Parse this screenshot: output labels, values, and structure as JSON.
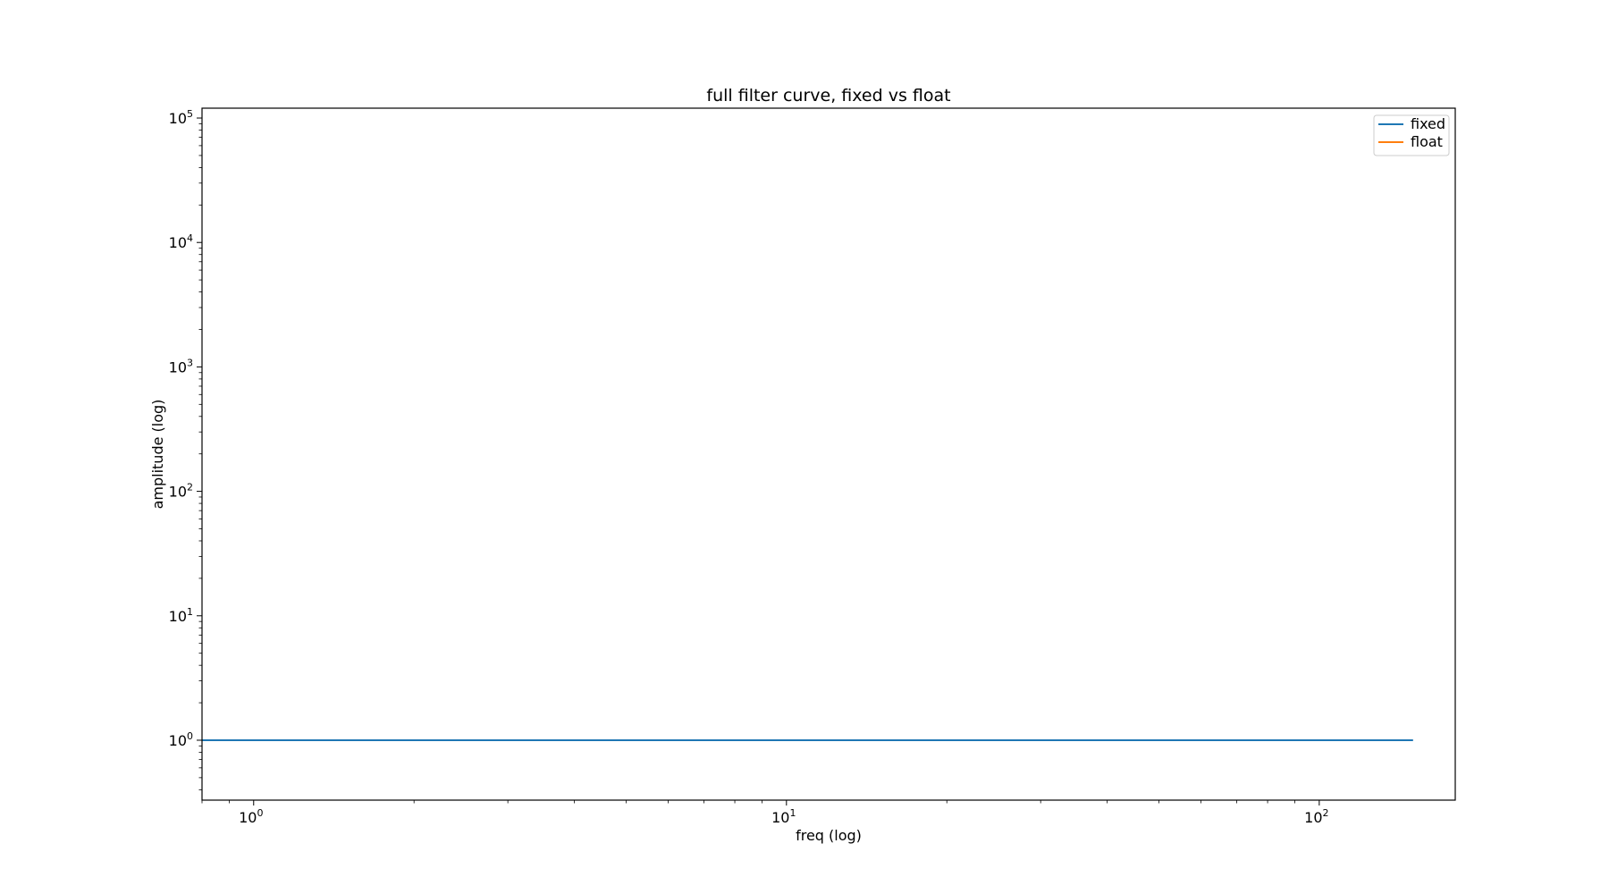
{
  "chart_data": {
    "type": "line",
    "title": "full filter curve, fixed vs float",
    "xlabel": "freq (log)",
    "ylabel": "amplitude (log)",
    "xscale": "log",
    "yscale": "log",
    "xlim": [
      0.8,
      180
    ],
    "ylim": [
      0.33,
      120000
    ],
    "x_ticks": [
      {
        "base": "10",
        "exp": "0",
        "value": 1
      },
      {
        "base": "10",
        "exp": "1",
        "value": 10
      },
      {
        "base": "10",
        "exp": "2",
        "value": 100
      }
    ],
    "y_ticks": [
      {
        "base": "10",
        "exp": "0",
        "value": 1
      },
      {
        "base": "10",
        "exp": "1",
        "value": 10
      },
      {
        "base": "10",
        "exp": "2",
        "value": 100
      },
      {
        "base": "10",
        "exp": "3",
        "value": 1000
      },
      {
        "base": "10",
        "exp": "4",
        "value": 10000
      },
      {
        "base": "10",
        "exp": "5",
        "value": 100000
      }
    ],
    "grid": false,
    "legend_position": "top-right",
    "series": [
      {
        "name": "fixed",
        "color": "#1f77b4",
        "x": [
          0.8,
          150
        ],
        "y": [
          1,
          1
        ]
      },
      {
        "name": "float",
        "color": "#ff7f0e",
        "x": [],
        "y": []
      }
    ]
  }
}
